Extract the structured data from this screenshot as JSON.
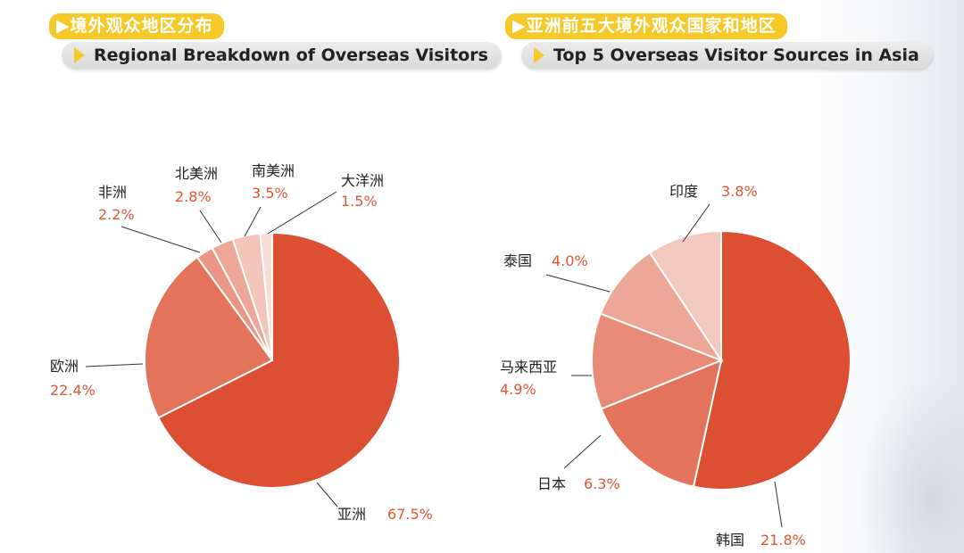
{
  "headers": {
    "left": {
      "zh": "▶境外观众地区分布",
      "en": "Regional Breakdown of Overseas Visitors"
    },
    "right": {
      "zh": "▶亚洲前五大境外观众国家和地区",
      "en": "Top 5 Overseas Visitor Sources in Asia"
    }
  },
  "colors": {
    "accent_yellow": "#f6c928",
    "value_text": "#e05535",
    "label_text": "#222222",
    "leader_line": "#333333"
  },
  "chart_data": [
    {
      "type": "pie",
      "title": "Regional Breakdown of Overseas Visitors",
      "slices": [
        {
          "label": "亚洲",
          "value": 67.5,
          "display": "67.5%",
          "color": "#dd4f33"
        },
        {
          "label": "欧洲",
          "value": 22.4,
          "display": "22.4%",
          "color": "#e4735c"
        },
        {
          "label": "非洲",
          "value": 2.2,
          "display": "2.2%",
          "color": "#ea9684"
        },
        {
          "label": "北美洲",
          "value": 2.8,
          "display": "2.8%",
          "color": "#eca798"
        },
        {
          "label": "南美洲",
          "value": 3.5,
          "display": "3.5%",
          "color": "#f2c4ba"
        },
        {
          "label": "大洋洲",
          "value": 1.5,
          "display": "1.5%",
          "color": "#f8dcd6"
        }
      ]
    },
    {
      "type": "pie",
      "title": "Top 5 Overseas Visitor Sources in Asia",
      "slices": [
        {
          "label": "韩国",
          "value": 21.8,
          "display": "21.8%",
          "color": "#dd4f33"
        },
        {
          "label": "日本",
          "value": 6.3,
          "display": "6.3%",
          "color": "#e4735c"
        },
        {
          "label": "马来西亚",
          "value": 4.9,
          "display": "4.9%",
          "color": "#e88c78"
        },
        {
          "label": "泰国",
          "value": 4.0,
          "display": "4.0%",
          "color": "#eca798"
        },
        {
          "label": "印度",
          "value": 3.8,
          "display": "3.8%",
          "color": "#f3c8bf"
        }
      ]
    }
  ]
}
